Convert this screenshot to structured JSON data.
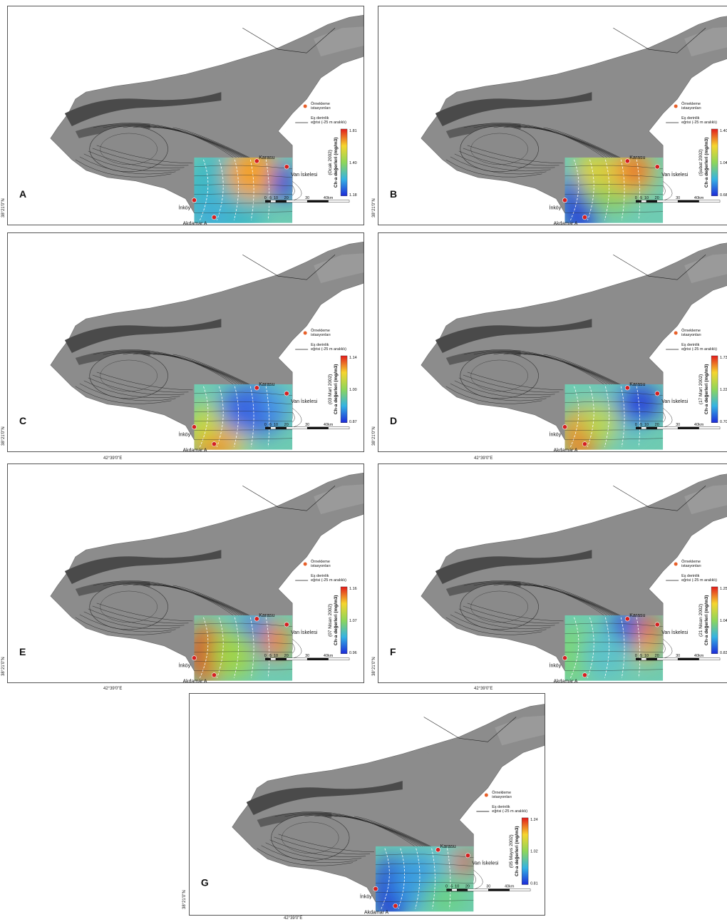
{
  "legend": {
    "station_label": "Örnekleme istasyonları",
    "contour_label": "Eş derinlik eğrisi (-25 m aralıklı)",
    "colorbar_prefix": "Ch-a değerleri (mg/m3)"
  },
  "stations": {
    "karasu": "Karasu",
    "van": "Van İskelesi",
    "inkoy": "İnköy",
    "akdamar": "Akdamar A"
  },
  "scale": {
    "ticks": [
      "0",
      "5",
      "10",
      "20",
      "30",
      "40km"
    ]
  },
  "coords": {
    "lat": "38°21'0\"N",
    "lon": "42°39'0\"E"
  },
  "colors": {
    "land": "#8c8c8c",
    "land_dark": "#4a4a4a",
    "station": "#d42020"
  },
  "panels": [
    {
      "id": "A",
      "date": "(Ocak 2002)",
      "max": "1.81",
      "mid": "1.40",
      "min": "1.18"
    },
    {
      "id": "B",
      "date": "(Şubat 2002)",
      "max": "1.40",
      "mid": "1.04",
      "min": "0.68"
    },
    {
      "id": "C",
      "date": "(03 Mart 2002)",
      "max": "1.14",
      "mid": "1.00",
      "min": "0.87"
    },
    {
      "id": "D",
      "date": "(17 Mart 2002)",
      "max": "1.73",
      "mid": "1.22",
      "min": "0.70"
    },
    {
      "id": "E",
      "date": "(07 Nisan 2002)",
      "max": "1.16",
      "mid": "1.07",
      "min": "0.96"
    },
    {
      "id": "F",
      "date": "(21 Nisan 2002)",
      "max": "1.25",
      "mid": "1.04",
      "min": "0.83"
    },
    {
      "id": "G",
      "date": "(05 Mayıs 2002)",
      "max": "1.24",
      "mid": "1.02",
      "min": "0.81"
    }
  ]
}
